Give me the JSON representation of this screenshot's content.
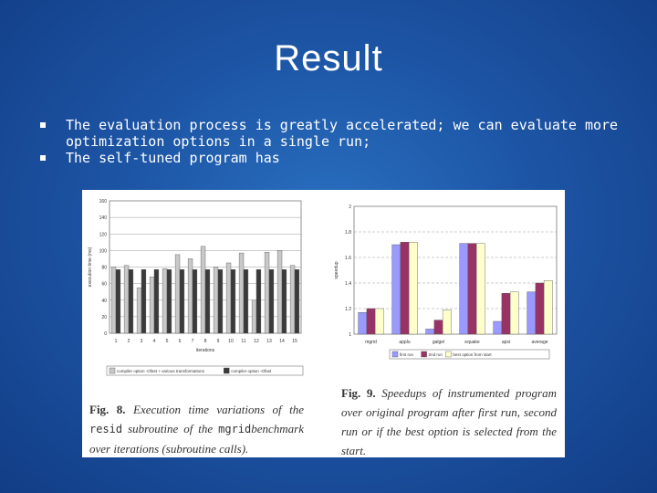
{
  "slide": {
    "title": "Result",
    "bullets": [
      "The evaluation process is greatly accelerated; we can evaluate more optimization options in a single run;",
      "The self-tuned program has"
    ]
  },
  "figure8": {
    "caption_label": "Fig. 8.",
    "caption_pre": "Execution time variations of the",
    "caption_code1": "resid",
    "caption_mid": "subroutine of the",
    "caption_code2": "mgrid",
    "caption_post": "benchmark over iterations (subroutine calls)."
  },
  "figure9": {
    "caption_label": "Fig. 9.",
    "caption_text": "Speedups of instrumented program over original program after first run, second run or if the best option is selected from the start."
  },
  "chart_data": [
    {
      "type": "bar",
      "ylabel": "execution time (ms)",
      "xlabel": "iterations",
      "ylim": [
        0,
        160
      ],
      "yticks": [
        "0",
        "20",
        "40",
        "60",
        "80",
        "100",
        "120",
        "140",
        "160"
      ],
      "categories": [
        "1",
        "2",
        "3",
        "4",
        "5",
        "6",
        "7",
        "8",
        "9",
        "10",
        "11",
        "12",
        "13",
        "14",
        "15"
      ],
      "series": [
        {
          "name": "compiler option -Ofast + various transformations",
          "color": "#c8c8c8",
          "values": [
            80,
            82,
            55,
            68,
            78,
            95,
            90,
            105,
            80,
            85,
            97,
            40,
            98,
            100,
            82
          ]
        },
        {
          "name": "compiler option -Ofast",
          "color": "#3a3a3a",
          "values": [
            77,
            77,
            77,
            77,
            77,
            77,
            77,
            77,
            77,
            77,
            77,
            77,
            77,
            77,
            77
          ]
        }
      ],
      "legend": "bottom"
    },
    {
      "type": "bar",
      "ylabel": "speedup",
      "ylim": [
        1,
        2
      ],
      "yticks": [
        "1",
        "1.2",
        "1.4",
        "1.6",
        "1.8",
        "2"
      ],
      "categories": [
        "mgrid",
        "applu",
        "galgel",
        "equake",
        "apsi",
        "average"
      ],
      "series": [
        {
          "name": "first run",
          "color": "#9999ff",
          "values": [
            1.17,
            1.7,
            1.04,
            1.71,
            1.1,
            1.33
          ]
        },
        {
          "name": "2nd run",
          "color": "#993366",
          "values": [
            1.2,
            1.72,
            1.11,
            1.71,
            1.32,
            1.4
          ]
        },
        {
          "name": "best option from start",
          "color": "#ffffcc",
          "values": [
            1.2,
            1.72,
            1.19,
            1.71,
            1.33,
            1.42
          ]
        }
      ],
      "legend": "bottom"
    }
  ]
}
